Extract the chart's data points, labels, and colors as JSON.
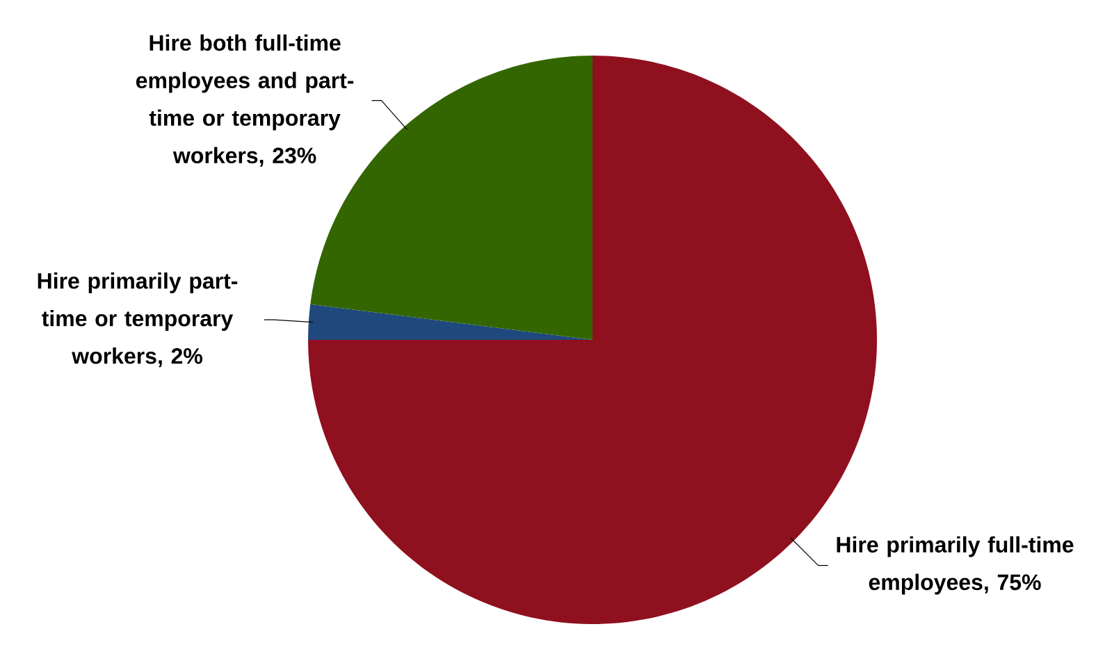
{
  "chart_data": {
    "type": "pie",
    "categories": [
      "Hire primarily full-time employees",
      "Hire primarily part-time or temporary workers",
      "Hire both full-time employees and part-time or temporary workers"
    ],
    "values": [
      75,
      2,
      23
    ],
    "colors": [
      "#8f101e",
      "#1f497d",
      "#336600"
    ],
    "value_labels": [
      ", 75%",
      ", 2%",
      ", 23%"
    ]
  }
}
